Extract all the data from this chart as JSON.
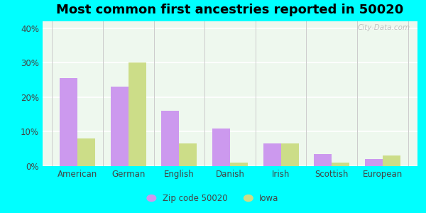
{
  "title": "Most common first ancestries reported in 50020",
  "categories": [
    "American",
    "German",
    "English",
    "Danish",
    "Irish",
    "Scottish",
    "European"
  ],
  "zip_values": [
    25.5,
    23.0,
    16.0,
    11.0,
    6.5,
    3.5,
    2.0
  ],
  "iowa_values": [
    8.0,
    30.0,
    6.5,
    1.0,
    6.5,
    1.0,
    3.0
  ],
  "zip_color": "#cc99ee",
  "iowa_color": "#ccdd88",
  "background_outer": "#00ffff",
  "background_inner": "#eef8ee",
  "ylim": [
    0,
    42
  ],
  "yticks": [
    0,
    10,
    20,
    30,
    40
  ],
  "ytick_labels": [
    "0%",
    "10%",
    "20%",
    "30%",
    "40%"
  ],
  "legend_zip_label": "Zip code 50020",
  "legend_iowa_label": "Iowa",
  "bar_width": 0.35,
  "title_fontsize": 13,
  "tick_fontsize": 8.5,
  "legend_fontsize": 8.5,
  "watermark_text": "City-Data.com"
}
